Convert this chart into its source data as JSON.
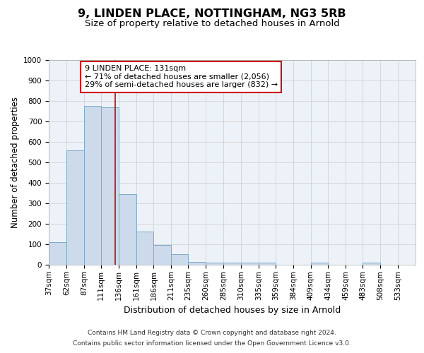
{
  "title": "9, LINDEN PLACE, NOTTINGHAM, NG3 5RB",
  "subtitle": "Size of property relative to detached houses in Arnold",
  "xlabel": "Distribution of detached houses by size in Arnold",
  "ylabel": "Number of detached properties",
  "bar_edges": [
    37,
    62,
    87,
    111,
    136,
    161,
    186,
    211,
    235,
    260,
    285,
    310,
    335,
    359,
    384,
    409,
    434,
    459,
    483,
    508,
    533
  ],
  "bar_heights": [
    110,
    558,
    775,
    768,
    345,
    163,
    97,
    52,
    15,
    12,
    12,
    9,
    9,
    0,
    0,
    9,
    0,
    0,
    9,
    0,
    0
  ],
  "bar_color": "#cddaeb",
  "bar_edge_color": "#7aaac8",
  "bar_linewidth": 0.7,
  "vline_x": 131,
  "vline_color": "#cc0000",
  "vline_linewidth": 1.2,
  "annotation_text": "9 LINDEN PLACE: 131sqm\n← 71% of detached houses are smaller (2,056)\n29% of semi-detached houses are larger (832) →",
  "annotation_box_color": "#ffffff",
  "annotation_box_edge_color": "#cc0000",
  "annotation_fontsize": 8.0,
  "ylim": [
    0,
    1000
  ],
  "yticks": [
    0,
    100,
    200,
    300,
    400,
    500,
    600,
    700,
    800,
    900,
    1000
  ],
  "grid_color": "#cccccc",
  "bg_color": "#edf2f8",
  "title_fontsize": 11.5,
  "subtitle_fontsize": 9.5,
  "xlabel_fontsize": 9,
  "ylabel_fontsize": 8.5,
  "tick_fontsize": 7.5,
  "footer_line1": "Contains HM Land Registry data © Crown copyright and database right 2024.",
  "footer_line2": "Contains public sector information licensed under the Open Government Licence v3.0."
}
